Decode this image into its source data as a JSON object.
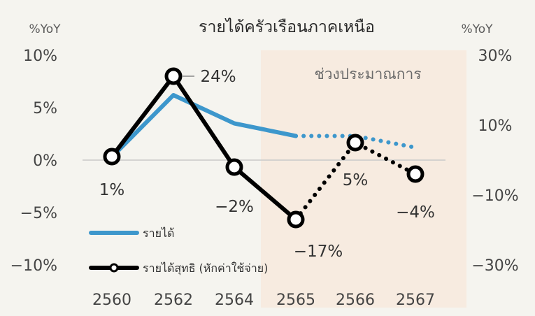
{
  "chart_data": {
    "type": "line",
    "title": "รายได้ครัวเรือนภาคเหนือ",
    "left_axis_unit": "%YoY",
    "right_axis_unit": "%YoY",
    "categories": [
      "2560",
      "2562",
      "2564",
      "2565",
      "2566",
      "2567"
    ],
    "left_axis": {
      "ylim": [
        -10,
        10
      ],
      "ticks": [
        "10%",
        "5%",
        "0%",
        "−5%",
        "−10%"
      ],
      "tick_values": [
        10,
        5,
        0,
        -5,
        -10
      ]
    },
    "right_axis": {
      "ylim": [
        -30,
        30
      ],
      "ticks": [
        "30%",
        "10%",
        "−10%",
        "−30%"
      ],
      "tick_values": [
        30,
        10,
        -10,
        -30
      ]
    },
    "forecast_region": {
      "label": "ช่วงประมาณการ",
      "from_category": "2565",
      "to_category": "2567"
    },
    "series": [
      {
        "name": "รายได้",
        "axis": "left",
        "color": "#3d97cc",
        "values": [
          0.3,
          6.2,
          3.5,
          2.3,
          2.3,
          1.2
        ],
        "forecast_from_index": 3
      },
      {
        "name": "รายได้สุทธิ (หักค่าใช้จ่าย)",
        "axis": "right",
        "color": "#000000",
        "values": [
          1,
          24,
          -2,
          -17,
          5,
          -4
        ],
        "data_labels": [
          "1%",
          "24%",
          "−2%",
          "−17%",
          "5%",
          "−4%"
        ],
        "forecast_from_index": 3
      }
    ],
    "grid": false,
    "legend": "bottom-left"
  }
}
